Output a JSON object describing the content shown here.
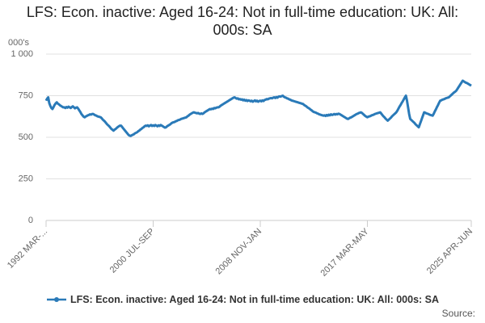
{
  "chart_data": {
    "type": "line",
    "title": "LFS: Econ. inactive: Aged 16-24: Not in full-time education: UK: All: 000s: SA",
    "y_label": "000's",
    "source": "Source:",
    "grid": true,
    "legend": "bottom",
    "ylim": [
      0,
      1000
    ],
    "yticks": [
      0,
      250,
      500,
      750,
      {
        "value": 1000,
        "label": "1 000"
      }
    ],
    "categories": [
      "1992 MAR-...",
      null,
      null,
      null,
      null,
      null,
      null,
      null,
      null,
      null,
      null,
      null,
      null,
      null,
      null,
      null,
      null,
      null,
      null,
      null,
      null,
      null,
      null,
      null,
      null,
      null,
      null,
      null,
      null,
      null,
      null,
      null,
      null,
      null,
      null,
      null,
      null,
      null,
      null,
      null,
      null,
      null,
      null,
      null,
      null,
      null,
      null,
      null,
      null,
      null,
      null,
      null,
      null,
      null,
      null,
      null,
      null,
      null,
      null,
      null,
      null,
      null,
      null,
      null,
      null,
      null,
      null,
      null,
      null,
      null,
      null,
      null,
      null,
      null,
      null,
      null,
      null,
      null,
      null,
      null,
      null,
      null,
      null,
      null,
      null,
      null,
      null,
      null,
      null,
      null,
      null,
      null,
      null,
      null,
      null,
      null,
      null,
      null,
      null,
      null,
      "2000 JUL-SEP",
      null,
      null,
      null,
      null,
      null,
      null,
      null,
      null,
      null,
      null,
      null,
      null,
      null,
      null,
      null,
      null,
      null,
      null,
      null,
      null,
      null,
      null,
      null,
      null,
      null,
      null,
      null,
      null,
      null,
      null,
      null,
      null,
      null,
      null,
      null,
      null,
      null,
      null,
      null,
      null,
      null,
      null,
      null,
      null,
      null,
      null,
      null,
      null,
      null,
      null,
      null,
      null,
      null,
      null,
      null,
      null,
      null,
      null,
      null,
      null,
      null,
      null,
      null,
      null,
      null,
      null,
      null,
      null,
      null,
      null,
      null,
      null,
      null,
      null,
      null,
      null,
      null,
      null,
      null,
      null,
      null,
      null,
      null,
      null,
      null,
      null,
      null,
      null,
      null,
      null,
      null,
      null,
      null,
      null,
      null,
      null,
      null,
      null,
      null,
      "2008 NOV-JAN",
      null,
      null,
      null,
      null,
      null,
      null,
      null,
      null,
      null,
      null,
      null,
      null,
      null,
      null,
      null,
      null,
      null,
      null,
      null,
      null,
      null,
      null,
      null,
      null,
      null,
      null,
      null,
      null,
      null,
      null,
      null,
      null,
      null,
      null,
      null,
      null,
      null,
      null,
      null,
      null,
      null,
      null,
      null,
      null,
      null,
      null,
      null,
      null,
      null,
      null,
      null,
      null,
      null,
      null,
      null,
      null,
      null,
      null,
      null,
      null,
      null,
      null,
      null,
      null,
      null,
      null,
      null,
      null,
      null,
      null,
      null,
      null,
      null,
      null,
      null,
      null,
      null,
      null,
      null,
      null,
      null,
      null,
      null,
      null,
      null,
      null,
      null,
      null,
      null,
      null,
      null,
      null,
      null,
      null,
      null,
      null,
      null,
      null,
      null,
      "2017 MAR-MAY",
      null,
      null,
      null,
      null,
      null,
      null,
      null,
      null,
      null,
      null,
      null,
      null,
      null,
      null,
      null,
      null,
      null,
      null,
      null,
      null,
      null,
      null,
      null,
      null,
      null,
      null,
      null,
      null,
      null,
      null,
      null,
      null,
      null,
      null,
      null,
      null,
      null,
      null,
      null,
      null,
      null,
      null,
      null,
      null,
      null,
      null,
      null,
      null,
      null,
      null,
      null,
      null,
      null,
      null,
      null,
      null,
      null,
      null,
      null,
      null,
      null,
      null,
      null,
      null,
      null,
      null,
      null,
      null,
      null,
      null,
      null,
      null,
      null,
      null,
      null,
      null,
      null,
      null,
      null,
      null,
      null,
      null,
      null,
      null,
      null,
      null,
      null,
      null,
      null,
      null,
      null,
      null,
      null,
      null,
      null,
      null,
      "2025 APR-JUN"
    ],
    "series": [
      {
        "name": "LFS: Econ. inactive: Aged 16-24: Not in full-time education: UK: All: 000s: SA",
        "color": "#2a7ab8",
        "values": [
          720,
          732,
          740,
          705,
          688,
          676,
          670,
          682,
          695,
          704,
          710,
          702,
          698,
          692,
          688,
          684,
          680,
          680,
          676,
          682,
          678,
          684,
          680,
          676,
          682,
          686,
          680,
          674,
          678,
          680,
          672,
          662,
          652,
          640,
          632,
          624,
          620,
          625,
          628,
          632,
          634,
          638,
          636,
          640,
          640,
          636,
          632,
          630,
          626,
          624,
          622,
          620,
          614,
          606,
          600,
          594,
          586,
          578,
          572,
          566,
          558,
          550,
          545,
          540,
          546,
          550,
          556,
          562,
          566,
          570,
          570,
          562,
          554,
          546,
          538,
          530,
          522,
          514,
          510,
          508,
          512,
          515,
          518,
          524,
          527,
          530,
          536,
          540,
          546,
          550,
          556,
          560,
          566,
          570,
          568,
          572,
          566,
          570,
          574,
          568,
          572,
          568,
          574,
          570,
          566,
          572,
          568,
          574,
          570,
          566,
          562,
          558,
          560,
          566,
          570,
          574,
          578,
          584,
          588,
          590,
          592,
          596,
          598,
          602,
          604,
          606,
          610,
          612,
          614,
          616,
          618,
          620,
          626,
          630,
          636,
          640,
          644,
          648,
          650,
          648,
          646,
          644,
          646,
          642,
          640,
          644,
          640,
          644,
          650,
          654,
          658,
          662,
          666,
          670,
          668,
          672,
          670,
          676,
          674,
          678,
          680,
          680,
          684,
          690,
          694,
          698,
          702,
          706,
          710,
          714,
          718,
          722,
          726,
          730,
          734,
          738,
          740,
          736,
          732,
          734,
          728,
          730,
          726,
          728,
          722,
          726,
          720,
          724,
          718,
          722,
          720,
          716,
          720,
          714,
          718,
          722,
          716,
          720,
          714,
          718,
          720,
          716,
          722,
          718,
          724,
          726,
          730,
          728,
          732,
          734,
          736,
          734,
          738,
          740,
          736,
          742,
          738,
          744,
          746,
          744,
          748,
          750,
          744,
          740,
          738,
          734,
          732,
          728,
          726,
          722,
          720,
          718,
          716,
          714,
          712,
          710,
          708,
          706,
          704,
          702,
          700,
          694,
          690,
          686,
          680,
          676,
          672,
          666,
          662,
          656,
          652,
          650,
          648,
          644,
          642,
          638,
          636,
          634,
          632,
          630,
          632,
          628,
          634,
          630,
          636,
          632,
          638,
          634,
          636,
          640,
          636,
          640,
          638,
          642,
          640,
          636,
          632,
          628,
          624,
          620,
          616,
          612,
          610,
          614,
          618,
          620,
          624,
          628,
          632,
          636,
          640,
          642,
          646,
          648,
          650,
          646,
          640,
          634,
          628,
          624,
          620,
          624,
          626,
          628,
          632,
          634,
          636,
          640,
          642,
          644,
          646,
          648,
          650,
          642,
          634,
          626,
          620,
          612,
          606,
          600,
          606,
          612,
          618,
          626,
          632,
          638,
          644,
          650,
          660,
          672,
          684,
          694,
          706,
          716,
          728,
          740,
          750,
          720,
          680,
          640,
          610,
          604,
          598,
          592,
          586,
          578,
          572,
          566,
          560,
          578,
          596,
          614,
          632,
          650,
          648,
          644,
          642,
          640,
          636,
          634,
          632,
          630,
          642,
          656,
          668,
          682,
          694,
          708,
          720,
          722,
          726,
          728,
          730,
          734,
          736,
          738,
          740,
          746,
          752,
          758,
          764,
          770,
          774,
          780,
          790,
          800,
          810,
          820,
          830,
          840,
          836,
          832,
          828,
          826,
          822,
          818,
          814,
          810
        ]
      }
    ]
  }
}
